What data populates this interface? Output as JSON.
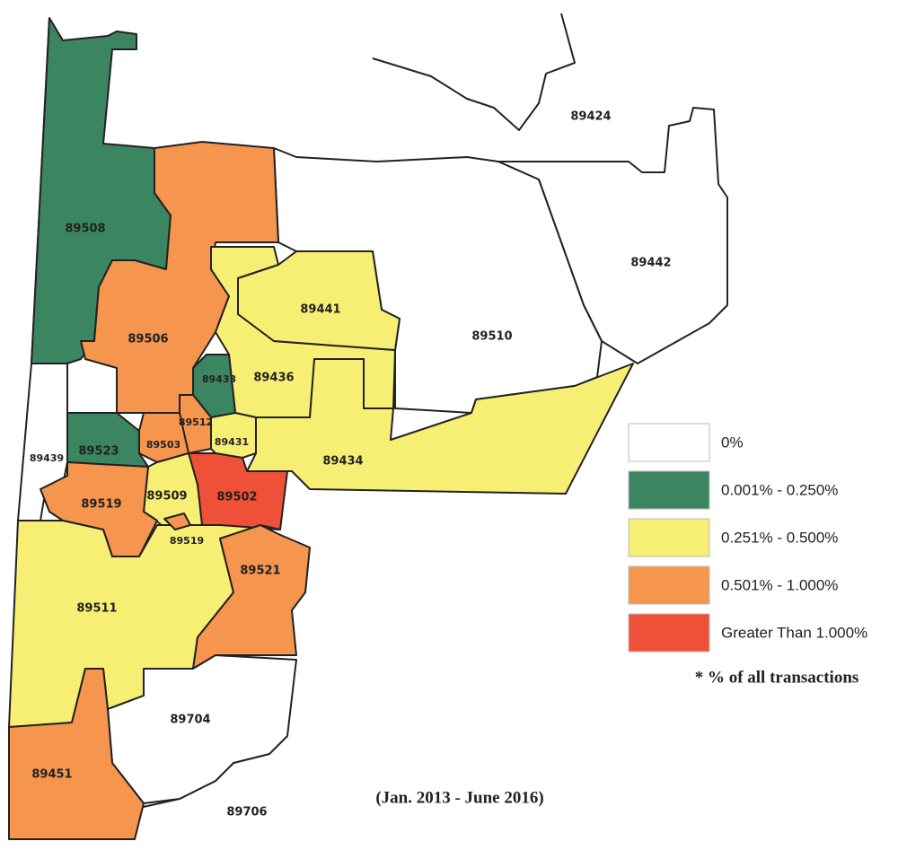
{
  "regions": [
    {
      "label": "89424"
    },
    {
      "label": "89442"
    },
    {
      "label": "89510"
    },
    {
      "label": "89508"
    },
    {
      "label": "89506"
    },
    {
      "label": "89441"
    },
    {
      "label": "89436"
    },
    {
      "label": "89433"
    },
    {
      "label": "89512"
    },
    {
      "label": "89503"
    },
    {
      "label": "89523"
    },
    {
      "label": "89439"
    },
    {
      "label": "89431"
    },
    {
      "label": "89434"
    },
    {
      "label": "89519"
    },
    {
      "label": "89509"
    },
    {
      "label": "89502"
    },
    {
      "label": "89519"
    },
    {
      "label": "89521"
    },
    {
      "label": "89511"
    },
    {
      "label": "89704"
    },
    {
      "label": "89451"
    },
    {
      "label": "89706"
    }
  ],
  "legend": {
    "items": [
      {
        "label": "0%",
        "color": "#ffffff"
      },
      {
        "label": "0.001% - 0.250%",
        "color": "#3b8560"
      },
      {
        "label": "0.251% - 0.500%",
        "color": "#f7ef74"
      },
      {
        "label": "0.501% - 1.000%",
        "color": "#f5954e"
      },
      {
        "label": "Greater Than 1.000%",
        "color": "#ef5038"
      }
    ],
    "note": "* % of all transactions"
  },
  "date_range": "(Jan. 2013 - June 2016)"
}
